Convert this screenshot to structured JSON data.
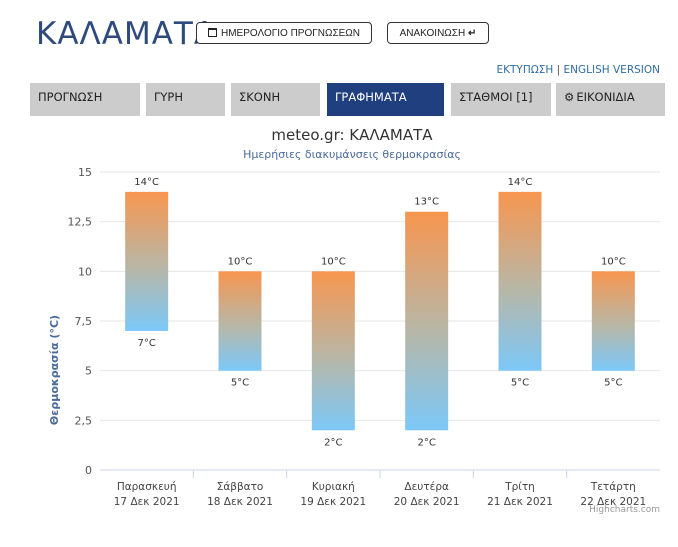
{
  "header": {
    "city": "ΚΑΛΑΜΑΤΑ",
    "calendar_button": "ΗΜΕΡΟΛΟΓΙΟ ΠΡΟΓΝΩΣΕΩΝ",
    "announcement_button": "ΑΝΑΚΟΙΝΩΣΗ",
    "announcement_icon": "arrow-down-icon",
    "calendar_icon": "calendar-icon",
    "print_link": "ΕΚΤΥΠΩΣΗ",
    "link_separator": "|",
    "english_link": "ENGLISH VERSION"
  },
  "tabs": [
    {
      "label": "ΠΡΟΓΝΩΣΗ",
      "active": false
    },
    {
      "label": "ΓΥΡΗ",
      "active": false
    },
    {
      "label": "ΣΚΟΝΗ",
      "active": false
    },
    {
      "label": "ΓΡΑΦΗΜΑΤΑ",
      "active": true
    },
    {
      "label": "ΣΤΑΘΜΟΙ [1]",
      "active": false
    },
    {
      "label": "ΕΙΚΟΝΙΔΙΑ",
      "active": false,
      "icon": "gear-icon"
    }
  ],
  "colors": {
    "accent": "#1f3f7f",
    "tab_bg": "#cccccc",
    "bar_top": "#f7964f",
    "bar_bottom": "#7cc8f8"
  },
  "chart_data": {
    "type": "columnrange",
    "title": "meteo.gr: ΚΑΛΑΜΑΤΑ",
    "subtitle": "Ημερήσιες διακυμάνσεις θερμοκρασίας",
    "ylabel": "Θερμοκρασία (°C)",
    "ylim": [
      0,
      15
    ],
    "yticks": [
      "0",
      "2,5",
      "5",
      "7,5",
      "10",
      "12,5",
      "15"
    ],
    "grid": true,
    "credit": "Highcharts.com",
    "unit": "°C",
    "categories": [
      {
        "day": "Παρασκευή",
        "date": "17 Δεκ 2021"
      },
      {
        "day": "Σάββατο",
        "date": "18 Δεκ 2021"
      },
      {
        "day": "Κυριακή",
        "date": "19 Δεκ 2021"
      },
      {
        "day": "Δευτέρα",
        "date": "20 Δεκ 2021"
      },
      {
        "day": "Τρίτη",
        "date": "21 Δεκ 2021"
      },
      {
        "day": "Τετάρτη",
        "date": "22 Δεκ 2021"
      }
    ],
    "low": [
      7,
      5,
      2,
      2,
      5,
      5
    ],
    "high": [
      14,
      10,
      10,
      13,
      14,
      10
    ]
  }
}
